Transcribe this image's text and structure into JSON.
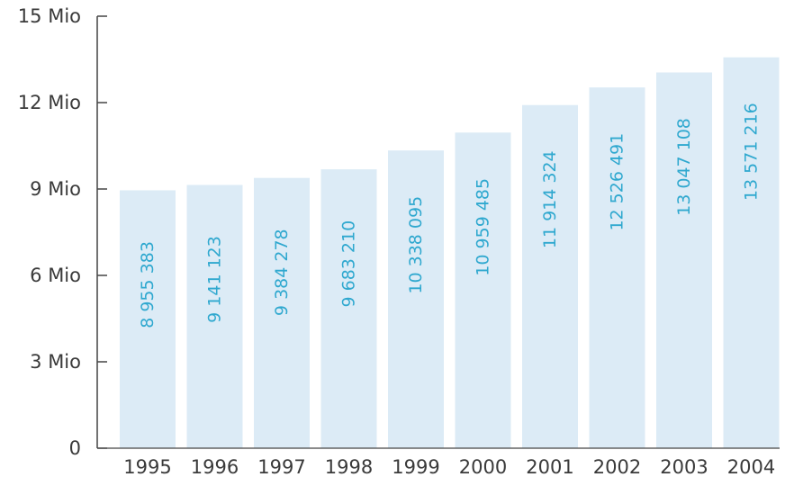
{
  "chart_data": {
    "type": "bar",
    "title": "",
    "xlabel": "",
    "ylabel": "",
    "categories": [
      "1995",
      "1996",
      "1997",
      "1998",
      "1999",
      "2000",
      "2001",
      "2002",
      "2003",
      "2004"
    ],
    "values": [
      8955383,
      9141123,
      9384278,
      9683210,
      10338095,
      10959485,
      11914324,
      12526491,
      13047108,
      13571216
    ],
    "data_labels": [
      "8 955 383",
      "9 141 123",
      "9 384 278",
      "9 683 210",
      "10 338 095",
      "10 959 485",
      "11 914 324",
      "12 526 491",
      "13 047 108",
      "13 571 216"
    ],
    "ylim": [
      0,
      15000000
    ],
    "yticks": [
      0,
      3000000,
      6000000,
      9000000,
      12000000,
      15000000
    ],
    "ytick_labels": [
      "0",
      "3 Mio",
      "6 Mio",
      "9 Mio",
      "12 Mio",
      "15 Mio"
    ],
    "grid": false,
    "legend": "none",
    "colors": {
      "bar": "#dcebf6",
      "label": "#2fa8cf",
      "axis": "#444444",
      "text": "#3a3a3a"
    }
  }
}
